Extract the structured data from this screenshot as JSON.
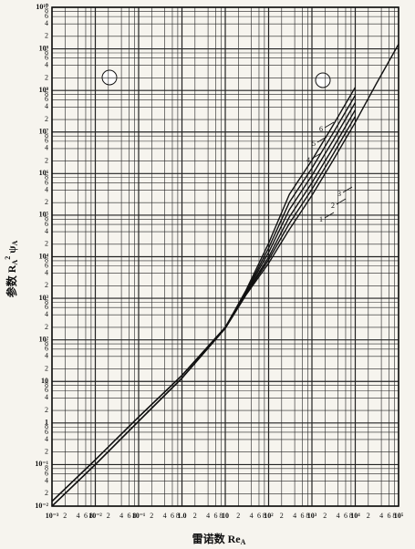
{
  "chart_data": {
    "type": "line",
    "log_x": true,
    "log_y": true,
    "grid": true,
    "color": "#111111",
    "xlabel": {
      "text": "雷诺数 Re",
      "sub": "A"
    },
    "ylabel": {
      "text": "参数 R",
      "sub": "A",
      "sup": "2",
      "text2": "ψ",
      "sub2": "A"
    },
    "xlim": [
      0.001,
      100000
    ],
    "ylim": [
      0.01,
      10000000000
    ],
    "xticks": [
      {
        "value": 0.001,
        "label": "10⁻³"
      },
      {
        "value": 0.002,
        "label": "2"
      },
      {
        "value": 0.004,
        "label": "4"
      },
      {
        "value": 0.006,
        "label": "6"
      },
      {
        "value": 0.008,
        "label": "8"
      },
      {
        "value": 0.01,
        "label": "10⁻²"
      },
      {
        "value": 0.02,
        "label": "2"
      },
      {
        "value": 0.04,
        "label": "4"
      },
      {
        "value": 0.06,
        "label": "6"
      },
      {
        "value": 0.08,
        "label": "8"
      },
      {
        "value": 0.1,
        "label": "10⁻¹"
      },
      {
        "value": 0.2,
        "label": "2"
      },
      {
        "value": 0.4,
        "label": "4"
      },
      {
        "value": 0.6,
        "label": "6"
      },
      {
        "value": 0.8,
        "label": "8"
      },
      {
        "value": 1,
        "label": "1.0"
      },
      2,
      4,
      6,
      8,
      10,
      {
        "value": 20,
        "label": "2"
      },
      {
        "value": 40,
        "label": "4"
      },
      {
        "value": 60,
        "label": "6"
      },
      {
        "value": 80,
        "label": "8"
      },
      {
        "value": 100,
        "label": "10²"
      },
      {
        "value": 200,
        "label": "2"
      },
      {
        "value": 400,
        "label": "4"
      },
      {
        "value": 600,
        "label": "6"
      },
      {
        "value": 800,
        "label": "8"
      },
      {
        "value": 1000,
        "label": "10³"
      },
      {
        "value": 2000,
        "label": "2"
      },
      {
        "value": 4000,
        "label": "4"
      },
      {
        "value": 6000,
        "label": "6"
      },
      {
        "value": 8000,
        "label": "8"
      },
      {
        "value": 10000,
        "label": "10⁴"
      },
      {
        "value": 20000,
        "label": "2"
      },
      {
        "value": 40000,
        "label": "4"
      },
      {
        "value": 60000,
        "label": "6"
      },
      {
        "value": 80000,
        "label": "8"
      },
      {
        "value": 100000,
        "label": "10⁵"
      }
    ],
    "yticks": [
      {
        "value": 0.01,
        "label": "10⁻²"
      },
      {
        "value": 0.02,
        "label": "2"
      },
      {
        "value": 0.04,
        "label": "4"
      },
      {
        "value": 0.06,
        "label": "6"
      },
      {
        "value": 0.08,
        "label": "8"
      },
      {
        "value": 0.1,
        "label": "10⁻¹"
      },
      {
        "value": 0.2,
        "label": "2"
      },
      {
        "value": 0.4,
        "label": "4"
      },
      {
        "value": 0.6,
        "label": "6"
      },
      {
        "value": 0.8,
        "label": "8"
      },
      1,
      2,
      4,
      6,
      8,
      10,
      {
        "value": 20,
        "label": "2"
      },
      {
        "value": 40,
        "label": "4"
      },
      {
        "value": 60,
        "label": "6"
      },
      {
        "value": 80,
        "label": "8"
      },
      {
        "value": 100,
        "label": "10²"
      },
      {
        "value": 200,
        "label": "2"
      },
      {
        "value": 400,
        "label": "4"
      },
      {
        "value": 600,
        "label": "6"
      },
      {
        "value": 800,
        "label": "8"
      },
      {
        "value": 1000,
        "label": "10³"
      },
      {
        "value": 2000,
        "label": "2"
      },
      {
        "value": 4000,
        "label": "4"
      },
      {
        "value": 6000,
        "label": "6"
      },
      {
        "value": 8000,
        "label": "8"
      },
      {
        "value": 10000,
        "label": "10⁴"
      },
      {
        "value": 20000,
        "label": "2"
      },
      {
        "value": 40000,
        "label": "4"
      },
      {
        "value": 60000,
        "label": "6"
      },
      {
        "value": 80000,
        "label": "8"
      },
      {
        "value": 100000,
        "label": "10⁵"
      },
      {
        "value": 200000,
        "label": "2"
      },
      {
        "value": 400000,
        "label": "4"
      },
      {
        "value": 600000,
        "label": "6"
      },
      {
        "value": 800000,
        "label": "8"
      },
      {
        "value": 1000000,
        "label": "10⁶"
      },
      {
        "value": 2000000,
        "label": "2"
      },
      {
        "value": 4000000,
        "label": "4"
      },
      {
        "value": 6000000,
        "label": "6"
      },
      {
        "value": 8000000,
        "label": "8"
      },
      {
        "value": 10000000,
        "label": "10⁷"
      },
      {
        "value": 20000000,
        "label": "2"
      },
      {
        "value": 40000000,
        "label": "4"
      },
      {
        "value": 60000000,
        "label": "6"
      },
      {
        "value": 80000000,
        "label": "8"
      },
      {
        "value": 100000000,
        "label": "10⁸"
      },
      {
        "value": 200000000,
        "label": "2"
      },
      {
        "value": 400000000,
        "label": "4"
      },
      {
        "value": 600000000,
        "label": "6"
      },
      {
        "value": 800000000,
        "label": "8"
      },
      {
        "value": 1000000000,
        "label": "10⁹"
      },
      {
        "value": 2000000000,
        "label": "2"
      },
      {
        "value": 4000000000,
        "label": "4"
      },
      {
        "value": 6000000000,
        "label": "6"
      },
      {
        "value": 8000000000,
        "label": "8"
      },
      {
        "value": 10000000000,
        "label": "10¹⁰"
      }
    ],
    "series": [
      {
        "name": "1",
        "x": [
          0.001,
          0.01,
          0.1,
          1,
          10,
          30,
          100,
          300,
          1000,
          3000,
          10000,
          30000,
          100000
        ],
        "values": [
          0.01,
          0.1,
          1.1,
          12,
          190,
          1200,
          7000,
          45000,
          300000,
          2000000,
          17000000,
          140000000,
          1300000000
        ]
      },
      {
        "name": "2",
        "x": [
          0.001,
          0.01,
          0.1,
          1,
          10,
          30,
          100,
          300,
          1000,
          3000,
          10000
        ],
        "values": [
          0.01,
          0.1,
          1.1,
          12,
          190,
          1260,
          8400,
          63000,
          420000,
          2800000,
          23800000
        ]
      },
      {
        "name": "3",
        "x": [
          0.001,
          0.01,
          0.1,
          1,
          10,
          30,
          100,
          300,
          1000,
          3000,
          10000
        ],
        "values": [
          0.01,
          0.1,
          1.1,
          12,
          190,
          1320,
          9800,
          90000,
          600000,
          4000000,
          34000000
        ]
      },
      {
        "name": "4",
        "x": [
          0.001,
          0.01,
          0.1,
          1,
          10,
          30,
          100,
          300,
          1000,
          3000,
          10000
        ],
        "values": [
          0.013,
          0.13,
          1.4,
          14,
          200,
          1380,
          12600,
          135000,
          900000,
          6000000,
          51000000
        ]
      },
      {
        "name": "5",
        "x": [
          0.001,
          0.01,
          0.1,
          1,
          10,
          30,
          100,
          300,
          1000,
          3000,
          10000
        ],
        "values": [
          0.013,
          0.13,
          1.4,
          14,
          200,
          1440,
          16100,
          202500,
          1350000,
          9000000,
          76500000
        ]
      },
      {
        "name": "6",
        "x": [
          0.001,
          0.01,
          0.1,
          1,
          10,
          30,
          100,
          300,
          1000,
          3000,
          10000
        ],
        "values": [
          0.013,
          0.13,
          1.4,
          14,
          200,
          1560,
          21000,
          315000,
          2100000,
          14000000,
          119000000
        ]
      }
    ]
  }
}
